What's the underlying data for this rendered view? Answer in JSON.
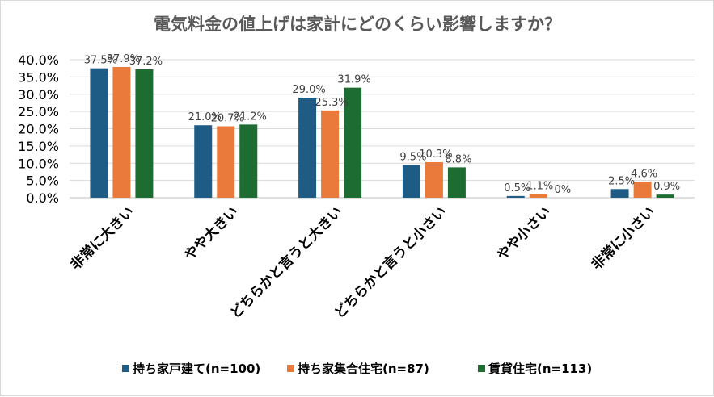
{
  "chart_data": {
    "type": "bar",
    "title": "電気料金の値上げは家計にどのくらい影響しますか？",
    "xlabel": "",
    "ylabel": "",
    "ylim": [
      0,
      40
    ],
    "y_ticks": [
      "0.0%",
      "5.0%",
      "10.0%",
      "15.0%",
      "20.0%",
      "25.0%",
      "30.0%",
      "35.0%",
      "40.0%"
    ],
    "grid": true,
    "legend_position": "bottom",
    "categories": [
      "非常に大きい",
      "やや大きい",
      "どちらかと言うと大きい",
      "どちらかと言うと小さい",
      "やや小さい",
      "非常に小さい"
    ],
    "series": [
      {
        "name": "持ち家戸建て(n=100)",
        "color": "#1f5c85",
        "values": [
          37.5,
          21.0,
          29.0,
          9.5,
          0.5,
          2.5
        ],
        "labels": [
          "37.5%",
          "21.0%",
          "29.0%",
          "9.5%",
          "0.5%",
          "2.5%"
        ]
      },
      {
        "name": "持ち家集合住宅(n=87)",
        "color": "#ea7a3b",
        "values": [
          37.9,
          20.7,
          25.3,
          10.3,
          1.1,
          4.6
        ],
        "labels": [
          "37.9%",
          "20.7%",
          "25.3%",
          "10.3%",
          "1.1%",
          "4.6%"
        ]
      },
      {
        "name": "賃貸住宅(n=113)",
        "color": "#1d6d32",
        "values": [
          37.2,
          21.2,
          31.9,
          8.8,
          0,
          0.9
        ],
        "labels": [
          "37.2%",
          "21.2%",
          "31.9%",
          "8.8%",
          "0%",
          "0.9%"
        ]
      }
    ]
  }
}
